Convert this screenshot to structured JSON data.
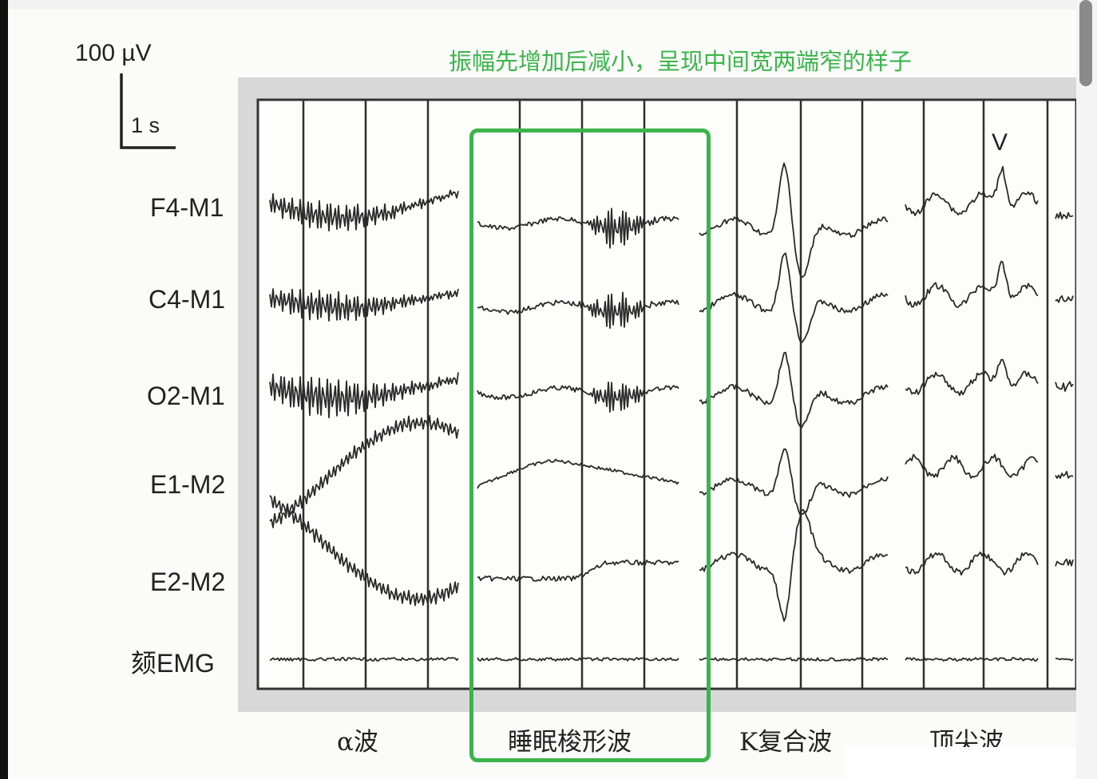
{
  "scale_bar": {
    "amplitude": "100 µV",
    "time": "1 s"
  },
  "channels": [
    "F4-M1",
    "C4-M1",
    "O2-M1",
    "E1-M2",
    "E2-M2",
    "颏EMG"
  ],
  "sections": [
    {
      "label": "α波"
    },
    {
      "label": "睡眠梭形波"
    },
    {
      "label": "K复合波"
    },
    {
      "label": "顶尖波"
    }
  ],
  "marker_v": "V",
  "annotation": {
    "text": "振幅先增加后减小，呈现中间宽两端窄的样子",
    "color": "#3bb54a"
  },
  "colors": {
    "trace": "#2a2a2a",
    "panel_bg": "#d9d9d9",
    "panel_inner": "#ffffff",
    "highlight": "#3cb44b"
  }
}
